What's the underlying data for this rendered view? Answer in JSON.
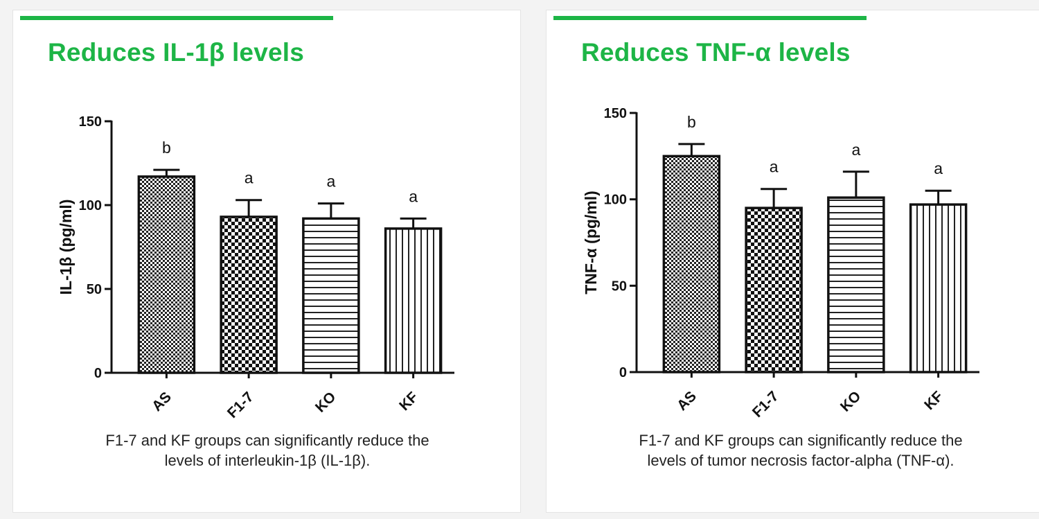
{
  "colors": {
    "accent": "#1db546",
    "ink": "#111111"
  },
  "panels": [
    {
      "title": "Reduces IL-1β levels",
      "caption": [
        "F1-7 and KF groups can significantly reduce the",
        "levels of interleukin-1β (IL-1β)."
      ]
    },
    {
      "title": "Reduces TNF-α levels",
      "caption": [
        "F1-7 and KF groups can significantly reduce the",
        "levels of tumor necrosis factor-alpha (TNF-α)."
      ]
    }
  ],
  "chart_data": [
    {
      "type": "bar",
      "ylabel": "IL-1β (pg/ml)",
      "xlabel": "",
      "ylim": [
        0,
        150
      ],
      "yticks": [
        0,
        50,
        100,
        150
      ],
      "categories": [
        "AS",
        "F1-7",
        "KO",
        "KF"
      ],
      "values": [
        117,
        93,
        92,
        86
      ],
      "errors": [
        4,
        10,
        9,
        6
      ],
      "significance": [
        "b",
        "a",
        "a",
        "a"
      ],
      "patterns": [
        "fine-checker",
        "checker",
        "horizontal-lines",
        "vertical-lines"
      ],
      "grid": false,
      "legend": "none"
    },
    {
      "type": "bar",
      "ylabel": "TNF-α (pg/ml)",
      "xlabel": "",
      "ylim": [
        0,
        150
      ],
      "yticks": [
        0,
        50,
        100,
        150
      ],
      "categories": [
        "AS",
        "F1-7",
        "KO",
        "KF"
      ],
      "values": [
        125,
        95,
        101,
        97
      ],
      "errors": [
        7,
        11,
        15,
        8
      ],
      "significance": [
        "b",
        "a",
        "a",
        "a"
      ],
      "patterns": [
        "fine-checker",
        "checker",
        "horizontal-lines",
        "vertical-lines"
      ],
      "grid": false,
      "legend": "none"
    }
  ]
}
